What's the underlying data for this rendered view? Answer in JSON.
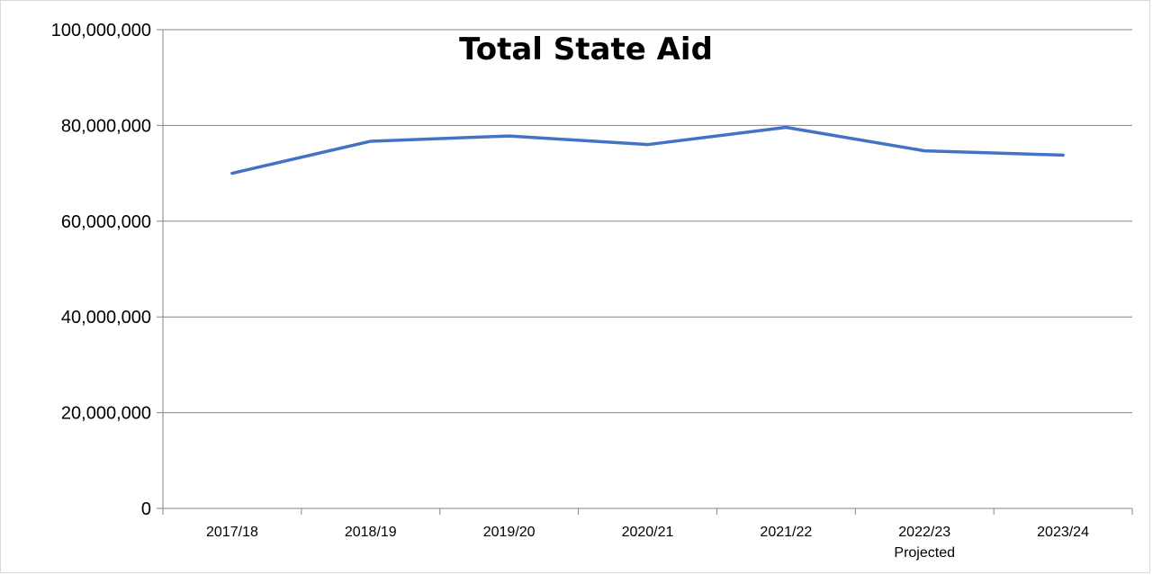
{
  "chart_data": {
    "type": "line",
    "title": "Total State Aid",
    "xlabel": "",
    "ylabel": "",
    "categories": [
      "2017/18",
      "2018/19",
      "2019/20",
      "2020/21",
      "2021/22",
      "2022/23",
      "2023/24"
    ],
    "category_sublabels": [
      "",
      "",
      "",
      "",
      "",
      "Projected",
      ""
    ],
    "series": [
      {
        "values": [
          70000000,
          76700000,
          77800000,
          76000000,
          79600000,
          74700000,
          73800000
        ],
        "color": "#4472c4"
      }
    ],
    "ylim": [
      0,
      100000000
    ],
    "yticks": [
      0,
      20000000,
      40000000,
      60000000,
      80000000,
      100000000
    ],
    "ytick_labels": [
      "0",
      "20,000,000",
      "40,000,000",
      "60,000,000",
      "80,000,000",
      "100,000,000"
    ],
    "grid": true,
    "legend": "none",
    "colors": {
      "line": "#4472c4",
      "gridline": "#868686",
      "axis": "#868686"
    }
  }
}
